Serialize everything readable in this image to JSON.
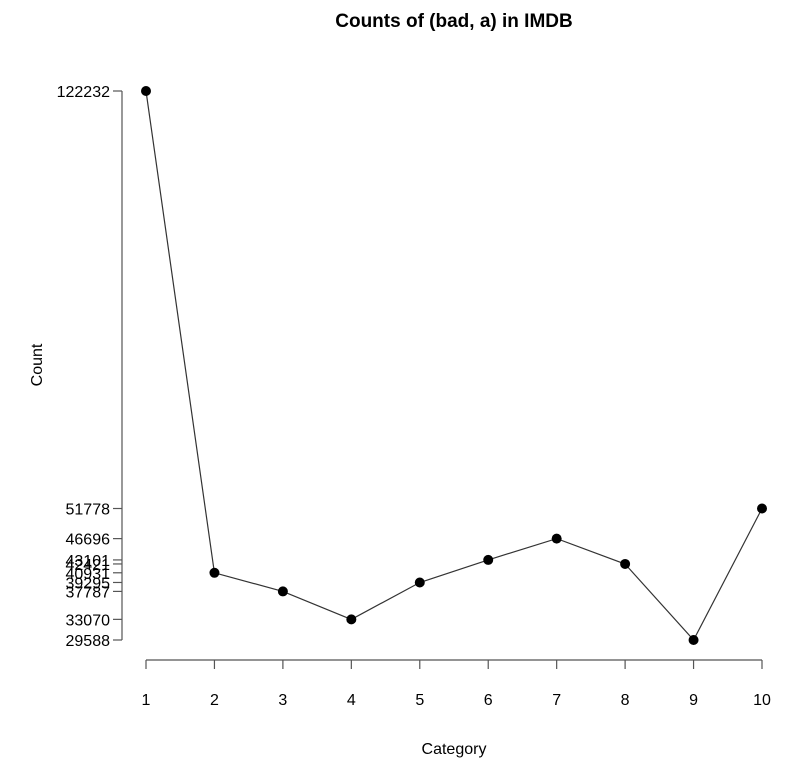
{
  "chart_data": {
    "type": "line",
    "title": "Counts of (bad, a) in IMDB",
    "xlabel": "Category",
    "ylabel": "Count",
    "x": [
      1,
      2,
      3,
      4,
      5,
      6,
      7,
      8,
      9,
      10
    ],
    "x_tick_labels": [
      "1",
      "2",
      "3",
      "4",
      "5",
      "6",
      "7",
      "8",
      "9",
      "10"
    ],
    "xlim": [
      1,
      10
    ],
    "series": [
      {
        "values": [
          122232,
          40931,
          37787,
          33070,
          39295,
          43101,
          46696,
          42421,
          29588,
          51778
        ]
      }
    ],
    "y_ticks": [
      29588,
      33070,
      37787,
      39295,
      40931,
      42421,
      43101,
      46696,
      51778,
      122232
    ],
    "y_tick_labels": [
      "29588",
      "33070",
      "37787",
      "39295",
      "40931",
      "42421",
      "43101",
      "46696",
      "51778",
      "122232"
    ],
    "ylim": [
      29588,
      122232
    ],
    "marker": "filled-circle",
    "grid": false,
    "legend": "none",
    "colors": {
      "line": "#333333",
      "point": "#000000",
      "axis": "#555555",
      "text": "#000000"
    }
  }
}
